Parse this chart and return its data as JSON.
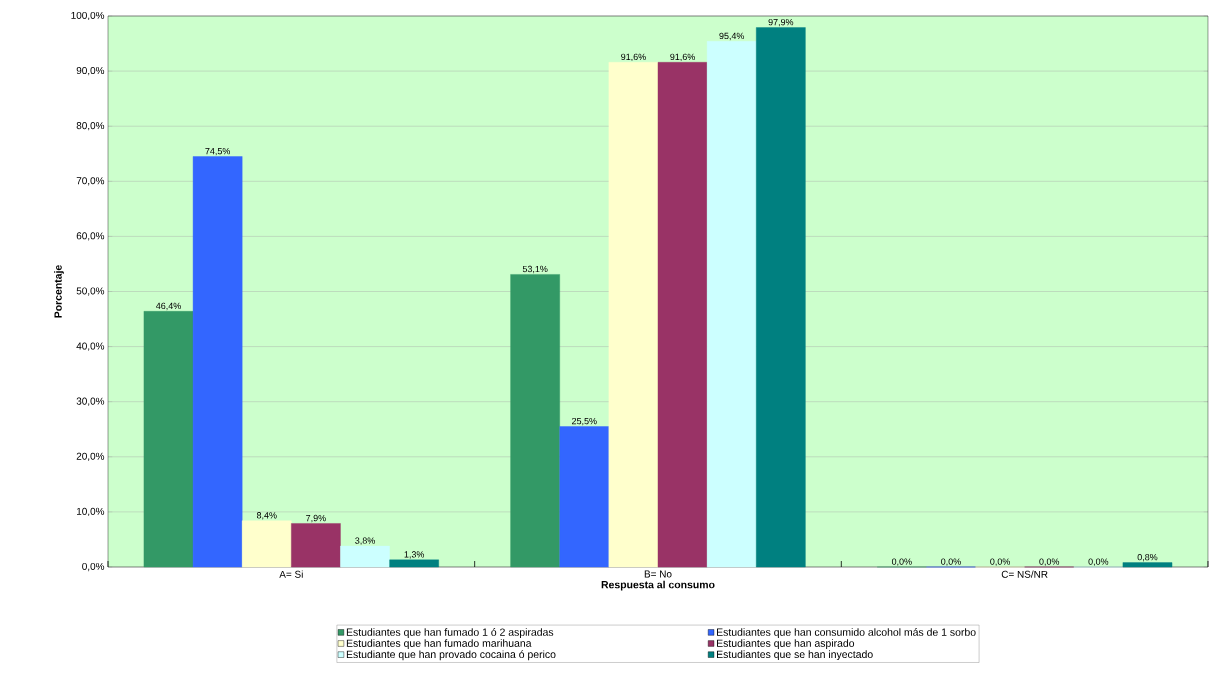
{
  "chart_data": {
    "type": "bar",
    "xlabel": "Respuesta al consumo",
    "ylabel": "Porcentaje",
    "categories": [
      "A= Si",
      "B= No",
      "C= NS/NR"
    ],
    "ylim": [
      0,
      100
    ],
    "yticks": [
      {
        "value": 0,
        "label": "0,0%"
      },
      {
        "value": 10,
        "label": "10,0%"
      },
      {
        "value": 20,
        "label": "20,0%"
      },
      {
        "value": 30,
        "label": "30,0%"
      },
      {
        "value": 40,
        "label": "40,0%"
      },
      {
        "value": 50,
        "label": "50,0%"
      },
      {
        "value": 60,
        "label": "60,0%"
      },
      {
        "value": 70,
        "label": "70,0%"
      },
      {
        "value": 80,
        "label": "80,0%"
      },
      {
        "value": 90,
        "label": "90,0%"
      },
      {
        "value": 100,
        "label": "100,0%"
      }
    ],
    "grid": "y",
    "legend": "bottom",
    "series": [
      {
        "name": "Estudiantes que han fumado 1 ó 2 aspiradas",
        "color": "#339966",
        "values": [
          46.4,
          53.1,
          0.0
        ],
        "value_labels": [
          "46,4%",
          "53,1%",
          "0,0%"
        ]
      },
      {
        "name": "Estudiantes que han consumido alcohol más de 1 sorbo",
        "color": "#3366ff",
        "values": [
          74.5,
          25.5,
          0.0
        ],
        "value_labels": [
          "74,5%",
          "25,5%",
          "0,0%"
        ]
      },
      {
        "name": "Estudiantes que han fumado marihuana",
        "color": "#ffffcc",
        "values": [
          8.4,
          91.6,
          0.0
        ],
        "value_labels": [
          "8,4%",
          "91,6%",
          "0,0%"
        ]
      },
      {
        "name": "Estudiantes que han aspirado",
        "color": "#993366",
        "values": [
          7.9,
          91.6,
          0.0
        ],
        "value_labels": [
          "7,9%",
          "91,6%",
          "0,0%"
        ]
      },
      {
        "name": "Estudiante que han provado cocaina ó perico",
        "color": "#ccffff",
        "values": [
          3.8,
          95.4,
          0.0
        ],
        "value_labels": [
          "3,8%",
          "95,4%",
          "0,0%"
        ]
      },
      {
        "name": "Estudiantes que se han inyectado",
        "color": "#008080",
        "values": [
          1.3,
          97.9,
          0.8
        ],
        "value_labels": [
          "1,3%",
          "97,9%",
          "0,8%"
        ]
      }
    ]
  }
}
